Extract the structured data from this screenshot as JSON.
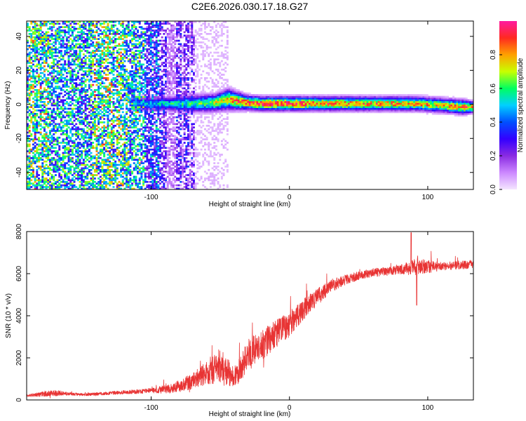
{
  "title": "C2E6.2026.030.17.18.G27",
  "chart_data": [
    {
      "type": "heatmap",
      "xlabel": "Height of straight line (km)",
      "ylabel": "Frequency (Hz)",
      "xlim": [
        -190,
        133
      ],
      "ylim": [
        -50,
        49
      ],
      "xticks": [
        -100,
        0,
        100
      ],
      "yticks": [
        -40,
        -20,
        0,
        20,
        40
      ],
      "grid": false,
      "colorbar": {
        "label": "Normalized spectral amplitude",
        "range": [
          0,
          1
        ],
        "ticks": [
          "0.0",
          "0.2",
          "0.4",
          "0.6",
          "0.8"
        ],
        "colors": [
          "#f4e6ff",
          "#cc88ff",
          "#8a2be2",
          "#3300ff",
          "#0050ff",
          "#00d0ff",
          "#00ff60",
          "#c8ff00",
          "#ffa000",
          "#ff2a20",
          "#ff1aa0"
        ]
      },
      "ridge": {
        "description": "coherent signal band near 0 Hz",
        "x": [
          -115,
          -90,
          -70,
          -55,
          -45,
          -38,
          -30,
          -20,
          -10,
          0,
          20,
          50,
          90,
          110,
          125,
          133
        ],
        "freq": [
          0.5,
          0.5,
          0.5,
          1,
          3,
          2,
          1,
          0.5,
          0.5,
          0.5,
          0.5,
          0.5,
          0.5,
          -0.5,
          -1.5,
          -1.5
        ],
        "width": [
          4,
          4,
          5,
          5,
          6,
          5,
          4,
          4,
          4,
          4,
          4,
          4,
          4,
          4,
          4,
          3
        ],
        "peak": [
          0.45,
          0.55,
          0.6,
          0.7,
          0.8,
          0.9,
          0.95,
          0.97,
          0.97,
          0.97,
          0.9,
          0.85,
          0.85,
          0.8,
          0.9,
          0.9
        ]
      },
      "noise_region": {
        "xmin": -190,
        "xmax": -70,
        "level": "broadband noise"
      }
    },
    {
      "type": "line",
      "xlabel": "Height of straight line (km)",
      "ylabel": "SNR (10 * v/v)",
      "xlim": [
        -190,
        133
      ],
      "ylim": [
        0,
        8000
      ],
      "xticks": [
        -100,
        0,
        100
      ],
      "yticks": [
        0,
        2000,
        4000,
        6000,
        8000
      ],
      "color": "#e83434",
      "series": [
        {
          "name": "SNR",
          "x": [
            -190,
            -170,
            -160,
            -150,
            -130,
            -110,
            -100,
            -90,
            -80,
            -70,
            -60,
            -55,
            -50,
            -45,
            -40,
            -35,
            -30,
            -25,
            -20,
            -10,
            0,
            10,
            20,
            30,
            40,
            50,
            60,
            70,
            80,
            90,
            100,
            110,
            120,
            133
          ],
          "values": [
            200,
            330,
            300,
            250,
            320,
            400,
            450,
            500,
            650,
            900,
            1300,
            1450,
            1350,
            1350,
            1100,
            1500,
            2200,
            2400,
            2600,
            3100,
            3600,
            4300,
            4900,
            5400,
            5700,
            5900,
            6050,
            6100,
            6200,
            6300,
            6350,
            6350,
            6400,
            6450
          ],
          "noise": [
            60,
            150,
            80,
            60,
            80,
            100,
            130,
            200,
            280,
            380,
            600,
            700,
            700,
            650,
            500,
            600,
            700,
            700,
            700,
            700,
            600,
            500,
            400,
            300,
            250,
            200,
            200,
            200,
            220,
            400,
            330,
            200,
            200,
            200
          ]
        }
      ]
    }
  ]
}
